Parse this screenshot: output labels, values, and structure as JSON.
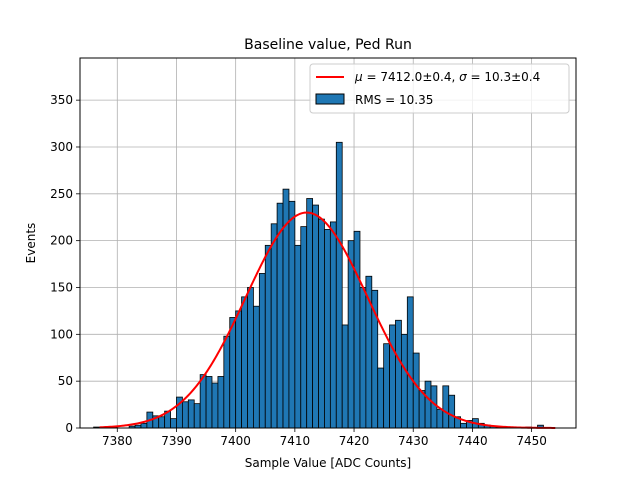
{
  "chart_data": {
    "type": "bar",
    "title": "Baseline value, Ped Run",
    "xlabel": "Sample Value [ADC Counts]",
    "ylabel": "Events",
    "xlim": [
      7373.7,
      7457.5
    ],
    "ylim": [
      0,
      395
    ],
    "grid": true,
    "legend_position": "top-right",
    "xticks": [
      7380,
      7390,
      7400,
      7410,
      7420,
      7430,
      7440,
      7450
    ],
    "yticks": [
      0,
      50,
      100,
      150,
      200,
      250,
      300,
      350
    ],
    "histogram": {
      "name": "RMS = 10.35",
      "color": "#1f77b4",
      "edgecolor": "#000000",
      "bin_width": 1,
      "bin_starts": [
        7376,
        7377,
        7378,
        7379,
        7380,
        7381,
        7382,
        7383,
        7384,
        7385,
        7386,
        7387,
        7388,
        7389,
        7390,
        7391,
        7392,
        7393,
        7394,
        7395,
        7396,
        7397,
        7398,
        7399,
        7400,
        7401,
        7402,
        7403,
        7404,
        7405,
        7406,
        7407,
        7408,
        7409,
        7410,
        7411,
        7412,
        7413,
        7414,
        7415,
        7416,
        7417,
        7418,
        7419,
        7420,
        7421,
        7422,
        7423,
        7424,
        7425,
        7426,
        7427,
        7428,
        7429,
        7430,
        7431,
        7432,
        7433,
        7434,
        7435,
        7436,
        7437,
        7438,
        7439,
        7440,
        7441,
        7442,
        7443,
        7444,
        7445,
        7446,
        7447,
        7448,
        7449,
        7450,
        7451
      ],
      "counts": [
        1,
        0,
        0,
        1,
        0,
        0,
        2,
        3,
        5,
        17,
        13,
        12,
        18,
        10,
        33,
        28,
        30,
        26,
        57,
        55,
        48,
        55,
        98,
        118,
        125,
        140,
        150,
        130,
        165,
        195,
        218,
        240,
        255,
        242,
        195,
        215,
        245,
        238,
        223,
        212,
        220,
        305,
        110,
        200,
        210,
        150,
        162,
        147,
        64,
        90,
        110,
        115,
        100,
        140,
        80,
        40,
        50,
        45,
        20,
        45,
        35,
        12,
        5,
        8,
        10,
        5,
        3,
        2,
        1,
        1,
        0,
        0,
        0,
        1,
        0,
        3
      ]
    },
    "fit": {
      "name": "$\\mu = 7412.0{\\pm}0.4$, $\\sigma = 10.3{\\pm}0.4$",
      "type": "gaussian",
      "color": "#ff0000",
      "amplitude": 230,
      "mu": 7412.0,
      "sigma": 10.3,
      "x_range": [
        7377,
        7454
      ]
    }
  }
}
